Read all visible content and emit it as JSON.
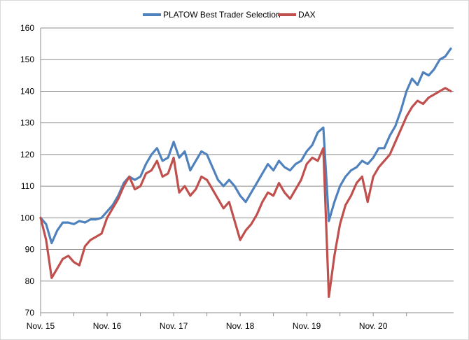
{
  "chart_data": {
    "type": "line",
    "title": "",
    "xlabel": "",
    "ylabel": "",
    "ylim": [
      70,
      160
    ],
    "yticks": [
      70,
      80,
      90,
      100,
      110,
      120,
      130,
      140,
      150,
      160
    ],
    "xticks": [
      "Nov. 15",
      "Nov. 16",
      "Nov. 17",
      "Nov. 18",
      "Nov. 19",
      "Nov. 20"
    ],
    "grid": "horizontal",
    "legend": "top-center",
    "series": [
      {
        "name": "PLATOW Best Trader Selection",
        "color": "#4f81bd",
        "points": [
          [
            "Nov. 15",
            100
          ],
          [
            "Dec. 15",
            98
          ],
          [
            "Jan. 16",
            92
          ],
          [
            "Feb. 16",
            96
          ],
          [
            "Mar. 16",
            98.5
          ],
          [
            "Apr. 16",
            98.5
          ],
          [
            "May 16",
            98
          ],
          [
            "Jun. 16",
            99
          ],
          [
            "Jul. 16",
            98.5
          ],
          [
            "Aug. 16",
            99.5
          ],
          [
            "Sep. 16",
            99.5
          ],
          [
            "Oct. 16",
            100
          ],
          [
            "Nov. 16",
            102
          ],
          [
            "Dec. 16",
            104
          ],
          [
            "Jan. 17",
            107
          ],
          [
            "Feb. 17",
            111
          ],
          [
            "Mar. 17",
            113
          ],
          [
            "Apr. 17",
            112
          ],
          [
            "May 17",
            113
          ],
          [
            "Jun. 17",
            117
          ],
          [
            "Jul. 17",
            120
          ],
          [
            "Aug. 17",
            122
          ],
          [
            "Sep. 17",
            118
          ],
          [
            "Oct. 17",
            119
          ],
          [
            "Nov. 17",
            124
          ],
          [
            "Dec. 17",
            119
          ],
          [
            "Jan. 18",
            121
          ],
          [
            "Feb. 18",
            115
          ],
          [
            "Mar. 18",
            118
          ],
          [
            "Apr. 18",
            121
          ],
          [
            "May 18",
            120
          ],
          [
            "Jun. 18",
            116
          ],
          [
            "Jul. 18",
            112
          ],
          [
            "Aug. 18",
            110
          ],
          [
            "Sep. 18",
            112
          ],
          [
            "Oct. 18",
            110
          ],
          [
            "Nov. 18",
            107
          ],
          [
            "Dec. 18",
            105
          ],
          [
            "Jan. 19",
            108
          ],
          [
            "Feb. 19",
            111
          ],
          [
            "Mar. 19",
            114
          ],
          [
            "Apr. 19",
            117
          ],
          [
            "May 19",
            115
          ],
          [
            "Jun. 19",
            118
          ],
          [
            "Jul. 19",
            116
          ],
          [
            "Aug. 19",
            115
          ],
          [
            "Sep. 19",
            117
          ],
          [
            "Oct. 19",
            118
          ],
          [
            "Nov. 19",
            121
          ],
          [
            "Dec. 19",
            123
          ],
          [
            "Jan. 20",
            127
          ],
          [
            "Feb. 20",
            128.5
          ],
          [
            "Mar. 20",
            99
          ],
          [
            "Apr. 20",
            105
          ],
          [
            "May 20",
            110
          ],
          [
            "Jun. 20",
            113
          ],
          [
            "Jul. 20",
            115
          ],
          [
            "Aug. 20",
            116
          ],
          [
            "Sep. 20",
            118
          ],
          [
            "Oct. 20",
            117
          ],
          [
            "Nov. 20",
            119
          ],
          [
            "Dec. 20",
            122
          ],
          [
            "Jan. 21",
            122
          ],
          [
            "Feb. 21",
            126
          ],
          [
            "Mar. 21",
            129
          ],
          [
            "Apr. 21",
            134
          ],
          [
            "May 21",
            140
          ],
          [
            "Jun. 21",
            144
          ],
          [
            "Jul. 21",
            142
          ],
          [
            "Aug. 21",
            146
          ],
          [
            "Sep. 21",
            145
          ],
          [
            "Oct. 21",
            147
          ],
          [
            "Nov. 21",
            150
          ],
          [
            "Dec. 21",
            151
          ],
          [
            "Jan. 22",
            153.5
          ]
        ]
      },
      {
        "name": "DAX",
        "color": "#c0504d",
        "points": [
          [
            "Nov. 15",
            100
          ],
          [
            "Dec. 15",
            93
          ],
          [
            "Jan. 16",
            81
          ],
          [
            "Feb. 16",
            84
          ],
          [
            "Mar. 16",
            87
          ],
          [
            "Apr. 16",
            88
          ],
          [
            "May 16",
            86
          ],
          [
            "Jun. 16",
            85
          ],
          [
            "Jul. 16",
            91
          ],
          [
            "Aug. 16",
            93
          ],
          [
            "Sep. 16",
            94
          ],
          [
            "Oct. 16",
            95
          ],
          [
            "Nov. 16",
            100
          ],
          [
            "Dec. 16",
            103
          ],
          [
            "Jan. 17",
            106
          ],
          [
            "Feb. 17",
            110
          ],
          [
            "Mar. 17",
            113
          ],
          [
            "Apr. 17",
            109
          ],
          [
            "May 17",
            110
          ],
          [
            "Jun. 17",
            114
          ],
          [
            "Jul. 17",
            115
          ],
          [
            "Aug. 17",
            118
          ],
          [
            "Sep. 17",
            113
          ],
          [
            "Oct. 17",
            114
          ],
          [
            "Nov. 17",
            119
          ],
          [
            "Dec. 17",
            108
          ],
          [
            "Jan. 18",
            110
          ],
          [
            "Feb. 18",
            107
          ],
          [
            "Mar. 18",
            109
          ],
          [
            "Apr. 18",
            113
          ],
          [
            "May 18",
            112
          ],
          [
            "Jun. 18",
            109
          ],
          [
            "Jul. 18",
            106
          ],
          [
            "Aug. 18",
            103
          ],
          [
            "Sep. 18",
            105
          ],
          [
            "Oct. 18",
            99
          ],
          [
            "Nov. 18",
            93
          ],
          [
            "Dec. 18",
            96
          ],
          [
            "Jan. 19",
            98
          ],
          [
            "Feb. 19",
            101
          ],
          [
            "Mar. 19",
            105
          ],
          [
            "Apr. 19",
            108
          ],
          [
            "May 19",
            107
          ],
          [
            "Jun. 19",
            111
          ],
          [
            "Jul. 19",
            108
          ],
          [
            "Aug. 19",
            106
          ],
          [
            "Sep. 19",
            109
          ],
          [
            "Oct. 19",
            112
          ],
          [
            "Nov. 19",
            117
          ],
          [
            "Dec. 19",
            119
          ],
          [
            "Jan. 20",
            118
          ],
          [
            "Feb. 20",
            122
          ],
          [
            "Mar. 20",
            75
          ],
          [
            "Apr. 20",
            88
          ],
          [
            "May 20",
            98
          ],
          [
            "Jun. 20",
            104
          ],
          [
            "Jul. 20",
            107
          ],
          [
            "Aug. 20",
            111
          ],
          [
            "Sep. 20",
            113
          ],
          [
            "Oct. 20",
            105
          ],
          [
            "Nov. 20",
            113
          ],
          [
            "Dec. 20",
            116
          ],
          [
            "Jan. 21",
            118
          ],
          [
            "Feb. 21",
            120
          ],
          [
            "Mar. 21",
            124
          ],
          [
            "Apr. 21",
            128
          ],
          [
            "May 21",
            132
          ],
          [
            "Jun. 21",
            135
          ],
          [
            "Jul. 21",
            137
          ],
          [
            "Aug. 21",
            136
          ],
          [
            "Sep. 21",
            138
          ],
          [
            "Oct. 21",
            139
          ],
          [
            "Nov. 21",
            140
          ],
          [
            "Dec. 21",
            141
          ],
          [
            "Jan. 22",
            140
          ]
        ]
      }
    ]
  }
}
